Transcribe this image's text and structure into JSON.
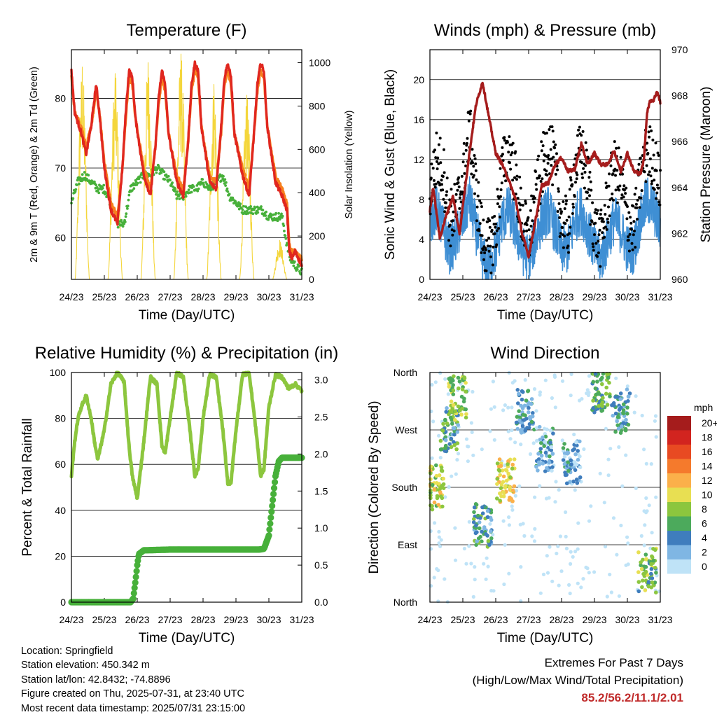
{
  "colors": {
    "temp2m": "#e0271f",
    "temp9m": "#f7801e",
    "dewpoint": "#47b03a",
    "solar": "#f4d63c",
    "wind": "#3f8fd4",
    "gust": "#000000",
    "pressure": "#a51c1c",
    "rh": "#8cc63e",
    "precip": "#47b03a",
    "extremes": "#c02a2a"
  },
  "x_ticks": [
    "24/23",
    "25/23",
    "26/23",
    "27/23",
    "28/23",
    "29/23",
    "30/23",
    "31/23"
  ],
  "chart_data": [
    {
      "type": "line",
      "title": "Temperature (F)",
      "xlabel": "Time (Day/UTC)",
      "ylabel": "2m & 9m T (Red, Orange) & 2m Td (Green)",
      "ylabel_right": "Solar Insolation (Yellow)",
      "x_range": [
        0,
        7
      ],
      "ylim": [
        54,
        87
      ],
      "yticks": [
        60,
        70,
        80
      ],
      "ylim_right": [
        0,
        1060
      ],
      "yticks_right": [
        0,
        200,
        400,
        600,
        800,
        1000
      ],
      "grid": "horizontal",
      "series": [
        {
          "key": "t2m",
          "x": [
            0,
            0.1,
            0.3,
            0.45,
            0.6,
            0.7,
            0.75,
            0.85,
            1.0,
            1.2,
            1.4,
            1.55,
            1.65,
            1.75,
            1.85,
            1.95,
            2.2,
            2.4,
            2.55,
            2.65,
            2.75,
            2.85,
            2.95,
            3.2,
            3.4,
            3.55,
            3.65,
            3.75,
            3.85,
            3.95,
            4.2,
            4.4,
            4.55,
            4.65,
            4.75,
            4.85,
            4.95,
            5.2,
            5.4,
            5.55,
            5.65,
            5.75,
            5.85,
            5.95,
            6.2,
            6.4,
            6.55,
            6.62,
            6.7,
            6.8,
            7.0
          ],
          "y": [
            84,
            78,
            75,
            72,
            76,
            80,
            82,
            78,
            70,
            64,
            62,
            70,
            78,
            84,
            83,
            77,
            69,
            66,
            73,
            80,
            84,
            82,
            75,
            68,
            66,
            74,
            82,
            85,
            84,
            76,
            68,
            67,
            76,
            83,
            85,
            83,
            75,
            69,
            66,
            75,
            82,
            85,
            84,
            76,
            68,
            66,
            64,
            58,
            57,
            58,
            56
          ]
        },
        {
          "key": "t9m",
          "x": [
            0,
            0.1,
            0.3,
            0.45,
            0.6,
            0.7,
            0.75,
            0.85,
            1.0,
            1.2,
            1.4,
            1.55,
            1.65,
            1.75,
            1.85,
            1.95,
            2.2,
            2.4,
            2.55,
            2.65,
            2.75,
            2.85,
            2.95,
            3.2,
            3.4,
            3.55,
            3.65,
            3.75,
            3.85,
            3.95,
            4.2,
            4.4,
            4.55,
            4.65,
            4.75,
            4.85,
            4.95,
            5.2,
            5.4,
            5.55,
            5.65,
            5.75,
            5.85,
            5.95,
            6.2,
            6.4,
            6.55,
            6.62,
            6.7,
            6.8,
            7.0
          ],
          "y": [
            83,
            78,
            76,
            73,
            76,
            79,
            81,
            78,
            71,
            65,
            63,
            70,
            77,
            83,
            82,
            77,
            70,
            67,
            73,
            79,
            83,
            81,
            75,
            69,
            67,
            74,
            81,
            84,
            83,
            76,
            69,
            68,
            75,
            82,
            84,
            82,
            75,
            70,
            67,
            75,
            81,
            84,
            83,
            76,
            69,
            67,
            65,
            59,
            58,
            58,
            57
          ]
        },
        {
          "key": "td",
          "x": [
            0,
            0.2,
            0.4,
            0.6,
            0.8,
            1.0,
            1.2,
            1.4,
            1.6,
            1.8,
            2.0,
            2.2,
            2.4,
            2.6,
            2.8,
            3.0,
            3.2,
            3.4,
            3.6,
            3.8,
            4.0,
            4.2,
            4.4,
            4.6,
            4.8,
            5.0,
            5.2,
            5.4,
            5.6,
            5.8,
            6.0,
            6.2,
            6.4,
            6.55,
            6.65,
            6.8,
            7.0
          ],
          "y": [
            65,
            68,
            69,
            68,
            67,
            67,
            65,
            62,
            62,
            67,
            68,
            69,
            69,
            70,
            69,
            68,
            66,
            66,
            67,
            67,
            68,
            67,
            68,
            69,
            66,
            65,
            64,
            64,
            64,
            64,
            63,
            63,
            63,
            59,
            57,
            56,
            55
          ]
        },
        {
          "key": "solar",
          "axis": "right",
          "days": [
            0.33,
            1.33,
            2.33,
            3.33,
            4.33,
            5.33,
            6.33
          ],
          "peaks": [
            980,
            950,
            1000,
            1040,
            900,
            850,
            180
          ]
        }
      ]
    },
    {
      "type": "line",
      "title": "Winds (mph) & Pressure (mb)",
      "xlabel": "Time (Day/UTC)",
      "ylabel": "Sonic Wind & Gust (Blue, Black)",
      "ylabel_right": "Station Pressure (Maroon)",
      "x_range": [
        0,
        7
      ],
      "ylim": [
        0,
        23
      ],
      "yticks": [
        0,
        4,
        8,
        12,
        16,
        20
      ],
      "ylim_right": [
        960,
        970
      ],
      "yticks_right": [
        960,
        962,
        964,
        966,
        968,
        970
      ],
      "grid": "horizontal",
      "series": [
        {
          "key": "wind",
          "x": [
            0,
            0.2,
            0.4,
            0.6,
            0.8,
            1.0,
            1.2,
            1.4,
            1.6,
            1.8,
            2.0,
            2.2,
            2.4,
            2.6,
            2.8,
            3.0,
            3.2,
            3.4,
            3.6,
            3.8,
            4.0,
            4.2,
            4.4,
            4.6,
            4.8,
            5.0,
            5.2,
            5.4,
            5.6,
            5.8,
            6.0,
            6.2,
            6.4,
            6.6,
            6.8,
            7.0
          ],
          "y": [
            6,
            7,
            5,
            3,
            4,
            6,
            8,
            5,
            2,
            1,
            3,
            6,
            7,
            5,
            3,
            2,
            4,
            6,
            7,
            5,
            3,
            3,
            6,
            7,
            5,
            3,
            2,
            4,
            6,
            5,
            3,
            3,
            6,
            8,
            7,
            5
          ]
        },
        {
          "key": "gust",
          "x": [
            0,
            0.2,
            0.4,
            0.6,
            0.8,
            1.0,
            1.2,
            1.4,
            1.6,
            1.8,
            2.0,
            2.2,
            2.4,
            2.6,
            2.8,
            3.0,
            3.2,
            3.4,
            3.6,
            3.8,
            4.0,
            4.2,
            4.4,
            4.6,
            4.8,
            5.0,
            5.2,
            5.4,
            5.6,
            5.8,
            6.0,
            6.2,
            6.4,
            6.6,
            6.8,
            7.0
          ],
          "y": [
            9,
            12,
            11,
            6,
            7,
            10,
            15,
            9,
            4,
            3,
            5,
            11,
            13,
            10,
            6,
            4,
            8,
            11,
            14,
            11,
            6,
            5,
            11,
            13,
            10,
            5,
            4,
            8,
            11,
            10,
            6,
            5,
            10,
            13,
            12,
            9
          ]
        },
        {
          "key": "pressure",
          "axis": "right",
          "x": [
            0,
            0.1,
            0.3,
            0.5,
            0.7,
            0.9,
            1.0,
            1.2,
            1.4,
            1.6,
            1.8,
            2.0,
            2.2,
            2.4,
            2.6,
            2.8,
            3.0,
            3.2,
            3.4,
            3.6,
            3.8,
            4.0,
            4.2,
            4.4,
            4.6,
            4.8,
            5.0,
            5.2,
            5.4,
            5.6,
            5.8,
            6.0,
            6.2,
            6.4,
            6.5,
            6.6,
            6.7,
            6.8,
            6.9,
            7.0
          ],
          "y": [
            963.0,
            964.0,
            961.8,
            962.8,
            963.6,
            962.0,
            963.2,
            965.5,
            967.6,
            968.6,
            967.0,
            965.5,
            965.0,
            964.3,
            963.5,
            962.0,
            961.0,
            962.5,
            964.1,
            964.2,
            965.0,
            965.3,
            964.7,
            964.8,
            965.9,
            965.0,
            965.5,
            965.0,
            965.0,
            965.6,
            964.7,
            965.5,
            964.7,
            964.6,
            965.2,
            967.3,
            967.8,
            967.8,
            968.2,
            967.7
          ]
        }
      ]
    },
    {
      "type": "line",
      "title": "Relative Humidity (%) & Precipitation (in)",
      "xlabel": "Time (Day/UTC)",
      "ylabel": "Percent & Total Rainfall",
      "x_range": [
        0,
        7
      ],
      "ylim": [
        0,
        100
      ],
      "yticks": [
        0,
        20,
        40,
        60,
        80,
        100
      ],
      "ylim_right": [
        0,
        3.1
      ],
      "yticks_right": [
        "0.0",
        "0.5",
        "1.0",
        "1.5",
        "2.0",
        "2.5",
        "3.0"
      ],
      "grid": "horizontal",
      "series": [
        {
          "key": "rh",
          "x": [
            0,
            0.1,
            0.2,
            0.3,
            0.45,
            0.6,
            0.7,
            0.8,
            1.0,
            1.2,
            1.4,
            1.6,
            1.75,
            1.85,
            2.0,
            2.2,
            2.4,
            2.6,
            2.75,
            2.85,
            3.0,
            3.2,
            3.4,
            3.6,
            3.75,
            3.85,
            4.0,
            4.2,
            4.4,
            4.6,
            4.75,
            4.85,
            5.0,
            5.2,
            5.4,
            5.6,
            5.75,
            5.85,
            6.0,
            6.2,
            6.4,
            6.6,
            6.8,
            7.0
          ],
          "y": [
            55,
            70,
            80,
            85,
            90,
            80,
            70,
            62,
            75,
            95,
            100,
            96,
            68,
            55,
            45,
            70,
            98,
            95,
            68,
            65,
            80,
            100,
            98,
            75,
            55,
            58,
            80,
            99,
            98,
            75,
            52,
            52,
            75,
            99,
            100,
            76,
            55,
            58,
            85,
            99,
            98,
            93,
            95,
            92
          ]
        },
        {
          "key": "precip",
          "axis": "right",
          "x": [
            0,
            1.0,
            1.8,
            1.88,
            1.95,
            2.0,
            2.05,
            2.2,
            3.0,
            4.0,
            5.0,
            5.7,
            5.85,
            6.0,
            6.1,
            6.2,
            6.3,
            6.4,
            6.6,
            7.0
          ],
          "y": [
            0.0,
            0.0,
            0.0,
            0.05,
            0.3,
            0.5,
            0.65,
            0.7,
            0.71,
            0.71,
            0.71,
            0.71,
            0.72,
            0.9,
            1.3,
            1.7,
            1.9,
            1.95,
            1.95,
            1.95
          ]
        }
      ]
    },
    {
      "type": "scatter",
      "title": "Wind Direction",
      "xlabel": "Time (Day/UTC)",
      "ylabel": "Direction (Colored By Speed)",
      "x_range": [
        0,
        7
      ],
      "yticks": [
        "North",
        "East",
        "South",
        "West",
        "North"
      ],
      "grid": "horizontal",
      "legend": {
        "title": "mph",
        "placement": "right",
        "labels": [
          "20+",
          "18",
          "16",
          "14",
          "12",
          "10",
          "8",
          "6",
          "4",
          "2",
          "0"
        ],
        "colors": [
          "#a51c1c",
          "#d2241f",
          "#e84a22",
          "#f57a2c",
          "#fbb04a",
          "#e8df52",
          "#8cc63e",
          "#4caa5c",
          "#3f7dbd",
          "#7fb6e3",
          "#bfe3f7"
        ]
      },
      "clusters": [
        {
          "x": 0.15,
          "dir": 180,
          "speed": 9
        },
        {
          "x": 0.6,
          "dir": 270,
          "speed": 5
        },
        {
          "x": 0.85,
          "dir": 320,
          "speed": 8
        },
        {
          "x": 1.6,
          "dir": 120,
          "speed": 5
        },
        {
          "x": 2.3,
          "dir": 190,
          "speed": 10
        },
        {
          "x": 2.9,
          "dir": 300,
          "speed": 4
        },
        {
          "x": 3.5,
          "dir": 240,
          "speed": 3
        },
        {
          "x": 4.3,
          "dir": 220,
          "speed": 3
        },
        {
          "x": 5.2,
          "dir": 330,
          "speed": 6
        },
        {
          "x": 5.8,
          "dir": 300,
          "speed": 4
        },
        {
          "x": 6.6,
          "dir": 50,
          "speed": 7
        }
      ]
    }
  ],
  "info": {
    "location": "Location: Springfield",
    "elevation": "Station elevation: 450.342 m",
    "latlon": "Station lat/lon: 42.8432; -74.8896",
    "created": "Figure created on Thu, 2025-07-31, at 23:40 UTC",
    "latest": "Most recent data timestamp: 2025/07/31 23:15:00"
  },
  "extremes": {
    "title": "Extremes For Past 7 Days",
    "subtitle": "(High/Low/Max Wind/Total Precipitation)",
    "values": "85.2/56.2/11.1/2.01"
  }
}
